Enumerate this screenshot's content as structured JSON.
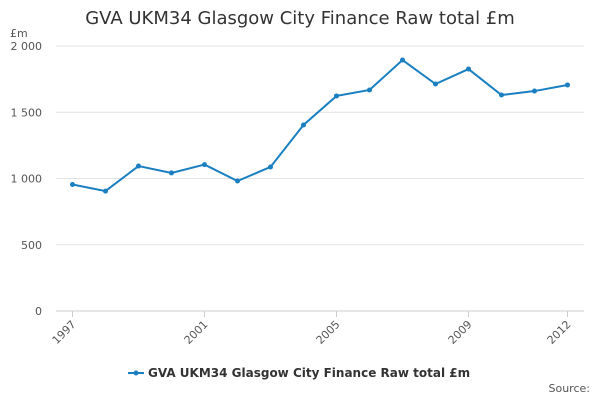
{
  "chart_data": {
    "type": "line",
    "title": "GVA UKM34 Glasgow City Finance Raw total £m",
    "ylabel": "£m",
    "source": "Source:",
    "x": [
      1997,
      1998,
      1999,
      2000,
      2001,
      2002,
      2003,
      2004,
      2005,
      2006,
      2007,
      2008,
      2009,
      2010,
      2011,
      2012
    ],
    "series": [
      {
        "name": "GVA UKM34 Glasgow City Finance Raw total £m",
        "color": "#1a7fc1",
        "values": [
          955,
          905,
          1094,
          1042,
          1105,
          981,
          1087,
          1404,
          1623,
          1668,
          1894,
          1713,
          1826,
          1630,
          1660,
          1706
        ]
      }
    ],
    "xlim": [
      1996.5,
      2012.5
    ],
    "xticks": [
      1997,
      2001,
      2005,
      2009,
      2012
    ],
    "ylim": [
      0,
      2000
    ],
    "yticks": [
      0,
      500,
      {
        "value": 1000,
        "label": "1 000"
      },
      {
        "value": 1500,
        "label": "1 500"
      },
      {
        "value": 2000,
        "label": "2 000"
      }
    ],
    "grid": true,
    "legend": "bottom"
  }
}
